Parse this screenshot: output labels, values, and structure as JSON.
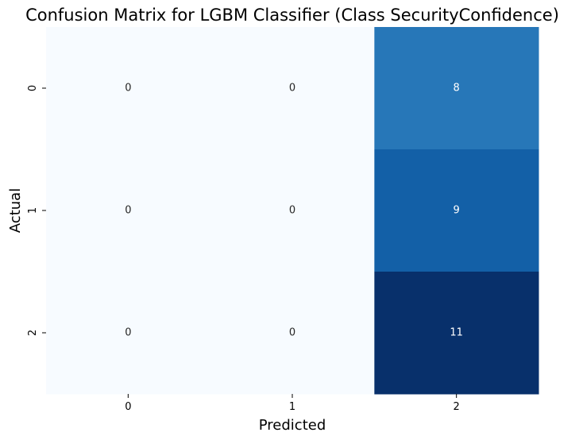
{
  "chart_data": {
    "type": "heatmap",
    "title": "Confusion Matrix for LGBM Classifier (Class SecurityConfidence)",
    "xlabel": "Predicted",
    "ylabel": "Actual",
    "x_categories": [
      "0",
      "1",
      "2"
    ],
    "y_categories": [
      "0",
      "1",
      "2"
    ],
    "values": [
      [
        0,
        0,
        8
      ],
      [
        0,
        0,
        9
      ],
      [
        0,
        0,
        11
      ]
    ],
    "color_range": [
      0,
      11
    ],
    "colormap": "Blues",
    "colorbar": false,
    "grid": false
  },
  "colors": {
    "low": "#f7fbff",
    "high": "#08306b",
    "text_dark": "#262626",
    "text_light": "#ffffff"
  }
}
